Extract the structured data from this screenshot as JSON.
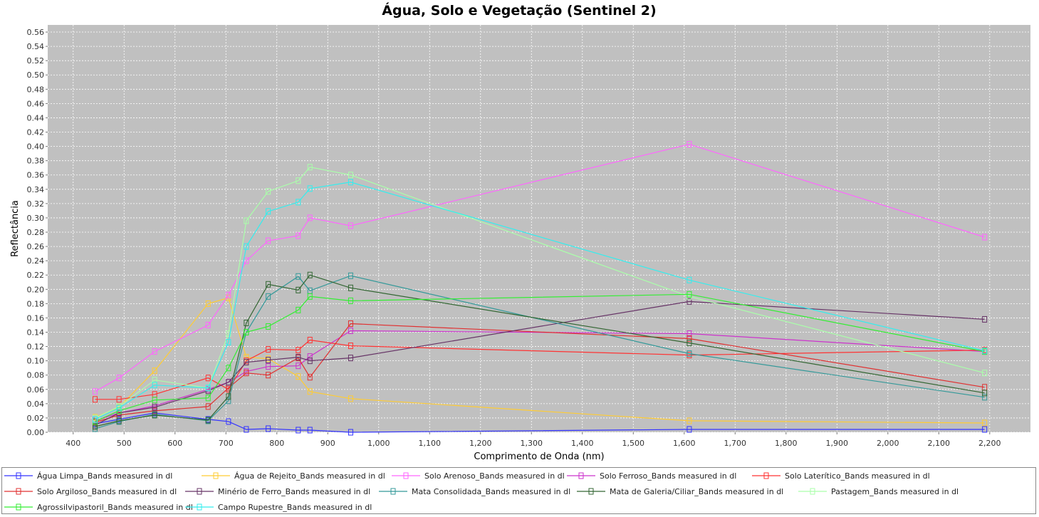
{
  "chart_data": {
    "type": "line",
    "title": "Água, Solo e Vegetação (Sentinel 2)",
    "xlabel": "Comprimento de Onda (nm)",
    "ylabel": "Reflectância",
    "xlim": [
      350,
      2280
    ],
    "ylim": [
      0,
      0.57
    ],
    "xticks": [
      "400",
      "500",
      "600",
      "700",
      "800",
      "900",
      "1,000",
      "1,100",
      "1,200",
      "1,300",
      "1,400",
      "1,500",
      "1,600",
      "1,700",
      "1,800",
      "1,900",
      "2,000",
      "2,100",
      "2,200"
    ],
    "xtick_values": [
      400,
      500,
      600,
      700,
      800,
      900,
      1000,
      1100,
      1200,
      1300,
      1400,
      1500,
      1600,
      1700,
      1800,
      1900,
      2000,
      2100,
      2200
    ],
    "yticks": [
      "0.00",
      "0.02",
      "0.04",
      "0.06",
      "0.08",
      "0.10",
      "0.12",
      "0.14",
      "0.16",
      "0.18",
      "0.20",
      "0.22",
      "0.24",
      "0.26",
      "0.28",
      "0.30",
      "0.32",
      "0.34",
      "0.36",
      "0.38",
      "0.40",
      "0.42",
      "0.44",
      "0.46",
      "0.48",
      "0.50",
      "0.52",
      "0.54",
      "0.56"
    ],
    "ytick_values": [
      0,
      0.02,
      0.04,
      0.06,
      0.08,
      0.1,
      0.12,
      0.14,
      0.16,
      0.18,
      0.2,
      0.22,
      0.24,
      0.26,
      0.28,
      0.3,
      0.32,
      0.34,
      0.36,
      0.38,
      0.4,
      0.42,
      0.44,
      0.46,
      0.48,
      0.5,
      0.52,
      0.54,
      0.56
    ],
    "grid": true,
    "legend_position": "bottom",
    "x": [
      443,
      490,
      560,
      665,
      705,
      740,
      783,
      842,
      865,
      945,
      1610,
      2190
    ],
    "series": [
      {
        "name": "Água Limpa_Bands measured in dl",
        "color": "#3333ff",
        "values": [
          0.012,
          0.018,
          0.027,
          0.018,
          0.015,
          0.004,
          0.005,
          0.003,
          0.003,
          0.0,
          0.004,
          0.004
        ]
      },
      {
        "name": "Água de Rejeito_Bands measured in dl",
        "color": "#ffcc33",
        "values": [
          0.021,
          0.035,
          0.086,
          0.18,
          0.188,
          0.105,
          0.103,
          0.078,
          0.057,
          0.047,
          0.016,
          0.013
        ]
      },
      {
        "name": "Solo Arenoso_Bands measured in dl",
        "color": "#ff66ff",
        "values": [
          0.057,
          0.076,
          0.113,
          0.15,
          0.192,
          0.24,
          0.268,
          0.275,
          0.3,
          0.289,
          0.403,
          0.273
        ]
      },
      {
        "name": "Solo Ferroso_Bands measured in dl",
        "color": "#cc33cc",
        "values": [
          0.016,
          0.027,
          0.037,
          0.06,
          0.07,
          0.085,
          0.092,
          0.093,
          0.106,
          0.142,
          0.138,
          0.113
        ]
      },
      {
        "name": "Solo Laterítico_Bands measured in dl",
        "color": "#ff3333",
        "values": [
          0.046,
          0.046,
          0.053,
          0.076,
          0.06,
          0.1,
          0.116,
          0.115,
          0.129,
          0.121,
          0.108,
          0.115
        ]
      },
      {
        "name": "Solo Argiloso_Bands measured in dl",
        "color": "#e03030",
        "values": [
          0.014,
          0.024,
          0.03,
          0.036,
          0.062,
          0.083,
          0.08,
          0.104,
          0.077,
          0.152,
          0.131,
          0.063
        ]
      },
      {
        "name": "Minério de Ferro_Bands measured in dl",
        "color": "#663366",
        "values": [
          0.01,
          0.027,
          0.035,
          0.058,
          0.07,
          0.098,
          0.101,
          0.105,
          0.1,
          0.104,
          0.183,
          0.158
        ]
      },
      {
        "name": "Mata Consolidada_Bands measured in dl",
        "color": "#339999",
        "values": [
          0.005,
          0.015,
          0.025,
          0.016,
          0.044,
          0.14,
          0.19,
          0.218,
          0.198,
          0.219,
          0.11,
          0.049
        ]
      },
      {
        "name": "Mata de Galeria/Ciliar_Bands measured in dl",
        "color": "#336633",
        "values": [
          0.008,
          0.016,
          0.024,
          0.017,
          0.05,
          0.153,
          0.207,
          0.199,
          0.22,
          0.202,
          0.125,
          0.055
        ]
      },
      {
        "name": "Pastagem_Bands measured in dl",
        "color": "#aaffaa",
        "values": [
          0.02,
          0.036,
          0.073,
          0.062,
          0.138,
          0.296,
          0.337,
          0.352,
          0.371,
          0.36,
          0.19,
          0.083
        ]
      },
      {
        "name": "Agrossilvipastoril_Bands measured in dl",
        "color": "#33ee33",
        "values": [
          0.015,
          0.03,
          0.045,
          0.048,
          0.09,
          0.14,
          0.148,
          0.171,
          0.19,
          0.184,
          0.193,
          0.113
        ]
      },
      {
        "name": "Campo Rupestre_Bands measured in dl",
        "color": "#33eeee",
        "values": [
          0.018,
          0.034,
          0.066,
          0.062,
          0.126,
          0.26,
          0.309,
          0.322,
          0.341,
          0.35,
          0.213,
          0.114
        ]
      }
    ]
  }
}
